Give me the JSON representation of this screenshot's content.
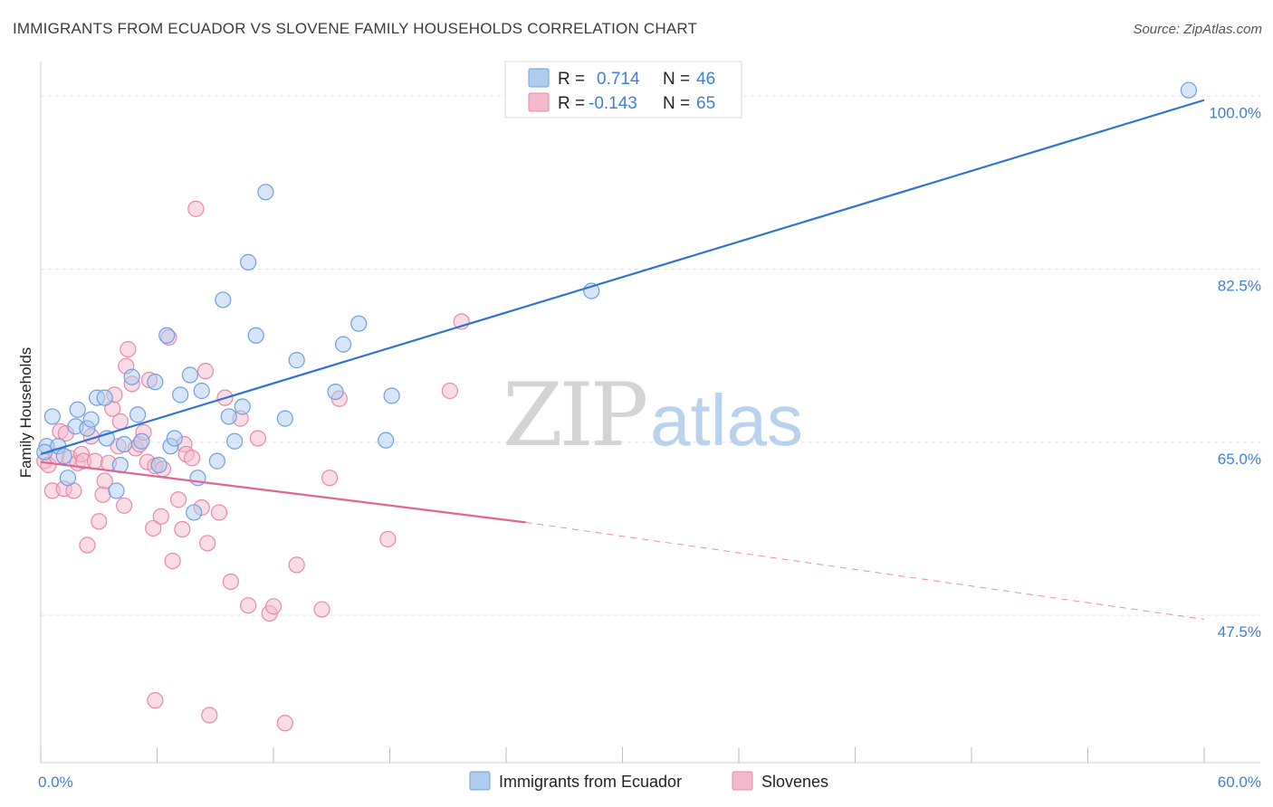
{
  "header": {
    "title": "IMMIGRANTS FROM ECUADOR VS SLOVENE FAMILY HOUSEHOLDS CORRELATION CHART",
    "source": "Source: ZipAtlas.com"
  },
  "watermark": {
    "zip": "ZIP",
    "atlas": "atlas"
  },
  "legend": {
    "rows": [
      {
        "r_label": "R =",
        "r_value": "0.714",
        "n_label": "N =",
        "n_value": "46"
      },
      {
        "r_label": "R =",
        "r_value": "-0.143",
        "n_label": "N =",
        "n_value": "65"
      }
    ]
  },
  "bottom_legend": [
    "Immigrants from Ecuador",
    "Slovenes"
  ],
  "colors": {
    "blue_fill": "#aecbf0",
    "blue_stroke": "#6f9fdc",
    "blue_line": "#2f74d0",
    "pink_fill": "#f5b9cd",
    "pink_stroke": "#e889a9",
    "pink_line": "#e2648f",
    "tick_text": "#3f7fd6",
    "grid": "#e3e3e3"
  },
  "chart_data": {
    "type": "scatter",
    "title": "IMMIGRANTS FROM ECUADOR VS SLOVENE FAMILY HOUSEHOLDS CORRELATION CHART",
    "xlabel": "",
    "ylabel": "Family Households",
    "xlim": [
      0,
      60
    ],
    "ylim": [
      32.6,
      103.5
    ],
    "x_tick_labels": [
      "0.0%",
      "60.0%"
    ],
    "y_ticks": [
      47.5,
      65.0,
      82.5,
      100.0
    ],
    "y_tick_labels": [
      "47.5%",
      "65.0%",
      "82.5%",
      "100.0%"
    ],
    "grid": true,
    "legend_position": "top-center",
    "series": [
      {
        "name": "Immigrants from Ecuador",
        "color": "#aecbf0",
        "points": [
          [
            0.3,
            64.6
          ],
          [
            0.6,
            67.6
          ],
          [
            0.9,
            64.6
          ],
          [
            1.4,
            61.4
          ],
          [
            1.8,
            66.6
          ],
          [
            1.9,
            68.3
          ],
          [
            2.4,
            66.4
          ],
          [
            2.6,
            67.3
          ],
          [
            2.9,
            69.5
          ],
          [
            3.3,
            69.5
          ],
          [
            3.4,
            65.4
          ],
          [
            3.9,
            60.1
          ],
          [
            4.1,
            62.7
          ],
          [
            4.3,
            64.8
          ],
          [
            4.7,
            71.6
          ],
          [
            5.0,
            67.8
          ],
          [
            5.2,
            65.1
          ],
          [
            5.9,
            71.1
          ],
          [
            6.1,
            62.7
          ],
          [
            6.5,
            75.8
          ],
          [
            6.7,
            64.6
          ],
          [
            6.9,
            65.4
          ],
          [
            7.2,
            69.8
          ],
          [
            7.7,
            71.8
          ],
          [
            7.9,
            57.9
          ],
          [
            8.1,
            61.4
          ],
          [
            8.3,
            70.2
          ],
          [
            9.1,
            63.1
          ],
          [
            9.4,
            79.4
          ],
          [
            9.7,
            67.6
          ],
          [
            10.0,
            65.1
          ],
          [
            10.4,
            68.6
          ],
          [
            10.7,
            83.2
          ],
          [
            11.1,
            75.8
          ],
          [
            11.6,
            90.3
          ],
          [
            12.6,
            67.4
          ],
          [
            13.2,
            73.3
          ],
          [
            15.2,
            70.1
          ],
          [
            15.6,
            74.9
          ],
          [
            16.4,
            77.0
          ],
          [
            17.8,
            65.2
          ],
          [
            18.1,
            69.7
          ],
          [
            28.4,
            80.3
          ],
          [
            59.2,
            100.6
          ],
          [
            0.2,
            64.0
          ],
          [
            1.2,
            63.6
          ]
        ]
      },
      {
        "name": "Slovenes",
        "color": "#f5b9cd",
        "points": [
          [
            0.2,
            63.1
          ],
          [
            0.4,
            62.7
          ],
          [
            0.6,
            60.1
          ],
          [
            0.8,
            63.6
          ],
          [
            1.0,
            66.1
          ],
          [
            1.2,
            60.3
          ],
          [
            1.3,
            65.9
          ],
          [
            1.5,
            63.4
          ],
          [
            1.7,
            60.1
          ],
          [
            1.9,
            62.9
          ],
          [
            2.1,
            63.8
          ],
          [
            2.2,
            63.1
          ],
          [
            2.4,
            54.6
          ],
          [
            2.6,
            65.6
          ],
          [
            2.8,
            63.1
          ],
          [
            3.0,
            57.0
          ],
          [
            3.2,
            59.7
          ],
          [
            3.3,
            61.1
          ],
          [
            3.5,
            62.9
          ],
          [
            3.7,
            68.4
          ],
          [
            3.8,
            69.8
          ],
          [
            4.0,
            64.6
          ],
          [
            4.1,
            67.1
          ],
          [
            4.3,
            58.6
          ],
          [
            4.4,
            72.7
          ],
          [
            4.5,
            74.4
          ],
          [
            4.7,
            70.9
          ],
          [
            4.9,
            64.4
          ],
          [
            5.1,
            64.8
          ],
          [
            5.3,
            66.0
          ],
          [
            5.5,
            63.0
          ],
          [
            5.6,
            71.3
          ],
          [
            5.8,
            56.3
          ],
          [
            5.9,
            62.6
          ],
          [
            6.2,
            57.5
          ],
          [
            6.3,
            62.3
          ],
          [
            6.6,
            75.6
          ],
          [
            6.8,
            53.0
          ],
          [
            7.1,
            59.2
          ],
          [
            7.3,
            56.2
          ],
          [
            7.4,
            64.8
          ],
          [
            7.5,
            63.8
          ],
          [
            7.8,
            63.4
          ],
          [
            8.0,
            88.6
          ],
          [
            8.3,
            58.4
          ],
          [
            8.5,
            72.2
          ],
          [
            8.6,
            54.8
          ],
          [
            8.7,
            37.4
          ],
          [
            9.2,
            57.9
          ],
          [
            9.5,
            69.5
          ],
          [
            9.8,
            50.9
          ],
          [
            10.3,
            67.4
          ],
          [
            10.7,
            48.5
          ],
          [
            11.2,
            65.4
          ],
          [
            11.8,
            47.7
          ],
          [
            12.0,
            48.4
          ],
          [
            12.6,
            36.6
          ],
          [
            13.2,
            52.6
          ],
          [
            14.5,
            48.1
          ],
          [
            14.9,
            61.4
          ],
          [
            15.4,
            69.4
          ],
          [
            17.9,
            55.2
          ],
          [
            21.1,
            70.2
          ],
          [
            21.7,
            77.2
          ],
          [
            5.9,
            38.9
          ]
        ]
      }
    ],
    "trend_lines": [
      {
        "series": "Immigrants from Ecuador",
        "from": [
          0,
          63.8
        ],
        "to": [
          60,
          99.6
        ],
        "style": "solid"
      },
      {
        "series": "Slovenes",
        "from": [
          0,
          63.0
        ],
        "to": [
          25,
          56.9
        ],
        "style": "solid"
      },
      {
        "series": "Slovenes",
        "from": [
          25,
          56.9
        ],
        "to": [
          60,
          47.1
        ],
        "style": "dashed"
      }
    ]
  }
}
